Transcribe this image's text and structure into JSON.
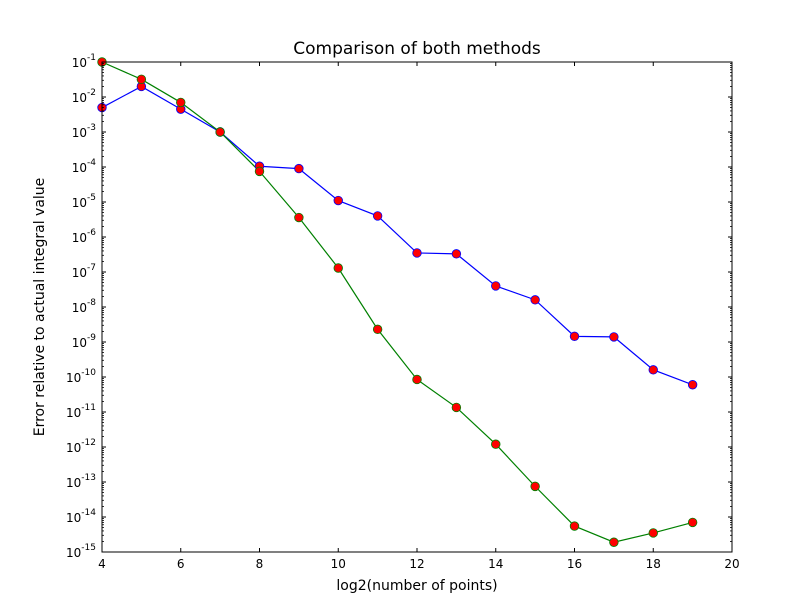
{
  "chart_data": {
    "type": "line",
    "title": "Comparison of both methods",
    "xlabel": "log2(number of points)",
    "ylabel": "Error relative to actual integral value",
    "xlim": [
      4,
      20
    ],
    "ylim": [
      1e-15,
      0.1
    ],
    "yscale": "log",
    "x_ticks": [
      "4",
      "6",
      "8",
      "10",
      "12",
      "14",
      "16",
      "18",
      "20"
    ],
    "y_ticks": [
      -1,
      -2,
      -3,
      -4,
      -5,
      -6,
      -7,
      -8,
      -9,
      -10,
      -11,
      -12,
      -13,
      -14,
      -15
    ],
    "grid": false,
    "legend": false,
    "marker_color": "#ff0000",
    "series": [
      {
        "color": "#0000ff",
        "x": [
          4,
          5,
          6,
          7,
          8,
          9,
          10,
          11,
          12,
          13,
          14,
          15,
          16,
          17,
          18,
          19
        ],
        "y": [
          0.005,
          0.02,
          0.0045,
          0.001,
          0.000105,
          9e-05,
          1.1e-05,
          4e-06,
          3.5e-07,
          3.3e-07,
          4e-08,
          1.6e-08,
          1.45e-09,
          1.4e-09,
          1.6e-10,
          6e-11
        ]
      },
      {
        "color": "#008000",
        "x": [
          4,
          5,
          6,
          7,
          8,
          9,
          10,
          11,
          12,
          13,
          14,
          15,
          16,
          17,
          18,
          19
        ],
        "y": [
          0.1,
          0.032,
          0.007,
          0.001,
          7.5e-05,
          3.6e-06,
          1.3e-07,
          2.3e-09,
          8.5e-11,
          1.35e-11,
          1.2e-12,
          7.5e-14,
          5.5e-15,
          1.9e-15,
          3.5e-15,
          7e-15
        ]
      }
    ]
  }
}
